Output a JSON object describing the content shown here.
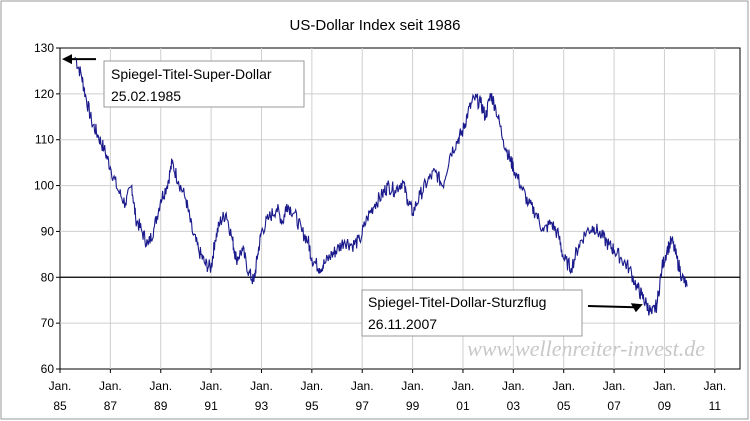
{
  "chart_data": {
    "type": "line",
    "title": "US-Dollar Index seit 1986",
    "xlabel": "",
    "ylabel": "",
    "xlim": [
      1985,
      2012
    ],
    "ylim": [
      60,
      130
    ],
    "yticks": [
      60,
      70,
      80,
      90,
      100,
      110,
      120,
      130
    ],
    "xtick_labels": [
      [
        "Jan.",
        "85"
      ],
      [
        "Jan.",
        "87"
      ],
      [
        "Jan.",
        "89"
      ],
      [
        "Jan.",
        "91"
      ],
      [
        "Jan.",
        "93"
      ],
      [
        "Jan.",
        "95"
      ],
      [
        "Jan.",
        "97"
      ],
      [
        "Jan.",
        "99"
      ],
      [
        "Jan.",
        "01"
      ],
      [
        "Jan.",
        "03"
      ],
      [
        "Jan.",
        "05"
      ],
      [
        "Jan.",
        "07"
      ],
      [
        "Jan.",
        "09"
      ],
      [
        "Jan.",
        "11"
      ]
    ],
    "grid": true,
    "reference_line": 80,
    "series": [
      {
        "name": "",
        "color": "#1a1a8c",
        "x": [
          1985.6,
          1985.85,
          1986.0,
          1986.25,
          1986.5,
          1986.75,
          1987.0,
          1987.3,
          1987.6,
          1987.85,
          1988.0,
          1988.25,
          1988.5,
          1988.75,
          1989.0,
          1989.25,
          1989.45,
          1989.7,
          1990.0,
          1990.25,
          1990.5,
          1990.75,
          1991.0,
          1991.15,
          1991.35,
          1991.6,
          1991.85,
          1992.0,
          1992.25,
          1992.5,
          1992.7,
          1992.85,
          1993.0,
          1993.3,
          1993.6,
          1993.85,
          1994.0,
          1994.3,
          1994.6,
          1994.85,
          1995.0,
          1995.3,
          1995.5,
          1995.8,
          1996.0,
          1996.3,
          1996.6,
          1996.9,
          1997.2,
          1997.5,
          1997.8,
          1998.0,
          1998.3,
          1998.6,
          1998.8,
          1999.0,
          1999.3,
          1999.6,
          1999.9,
          2000.2,
          2000.5,
          2000.8,
          2001.0,
          2001.2,
          2001.45,
          2001.7,
          2001.9,
          2002.1,
          2002.3,
          2002.6,
          2002.85,
          2003.0,
          2003.3,
          2003.6,
          2003.9,
          2004.2,
          2004.5,
          2004.8,
          2005.0,
          2005.3,
          2005.6,
          2005.9,
          2006.2,
          2006.5,
          2006.8,
          2007.0,
          2007.3,
          2007.6,
          2007.9,
          2008.1,
          2008.3,
          2008.5,
          2008.7,
          2008.9,
          2009.1,
          2009.3,
          2009.5,
          2009.7,
          2009.9
        ],
        "y": [
          128,
          124,
          120,
          114,
          111,
          108,
          104,
          99,
          96,
          100,
          93,
          90,
          87,
          91,
          97,
          100,
          105,
          101,
          97,
          90,
          86,
          83,
          82,
          88,
          92,
          94,
          88,
          84,
          86,
          81,
          79,
          85,
          90,
          93,
          95,
          92,
          96,
          94,
          90,
          88,
          84,
          82,
          83,
          85,
          86,
          88,
          87,
          88,
          93,
          96,
          98,
          100,
          99,
          101,
          97,
          94,
          98,
          101,
          103,
          100,
          107,
          110,
          112,
          116,
          119,
          118,
          115,
          120,
          117,
          110,
          106,
          104,
          100,
          96,
          94,
          90,
          92,
          89,
          84,
          82,
          87,
          90,
          91,
          89,
          87,
          86,
          84,
          82,
          78,
          76,
          74,
          72,
          74,
          82,
          86,
          88,
          84,
          80,
          78
        ]
      }
    ],
    "annotations": [
      {
        "lines": [
          "Spiegel-Titel-Super-Dollar",
          "25.02.1985"
        ],
        "arrow_to": [
          1985.0,
          128
        ]
      },
      {
        "lines": [
          "Spiegel-Titel-Dollar-Sturzflug",
          "26.11.2007"
        ],
        "arrow_to": [
          2008.3,
          75
        ]
      }
    ],
    "watermark": "www.wellenreiter-invest.de"
  }
}
